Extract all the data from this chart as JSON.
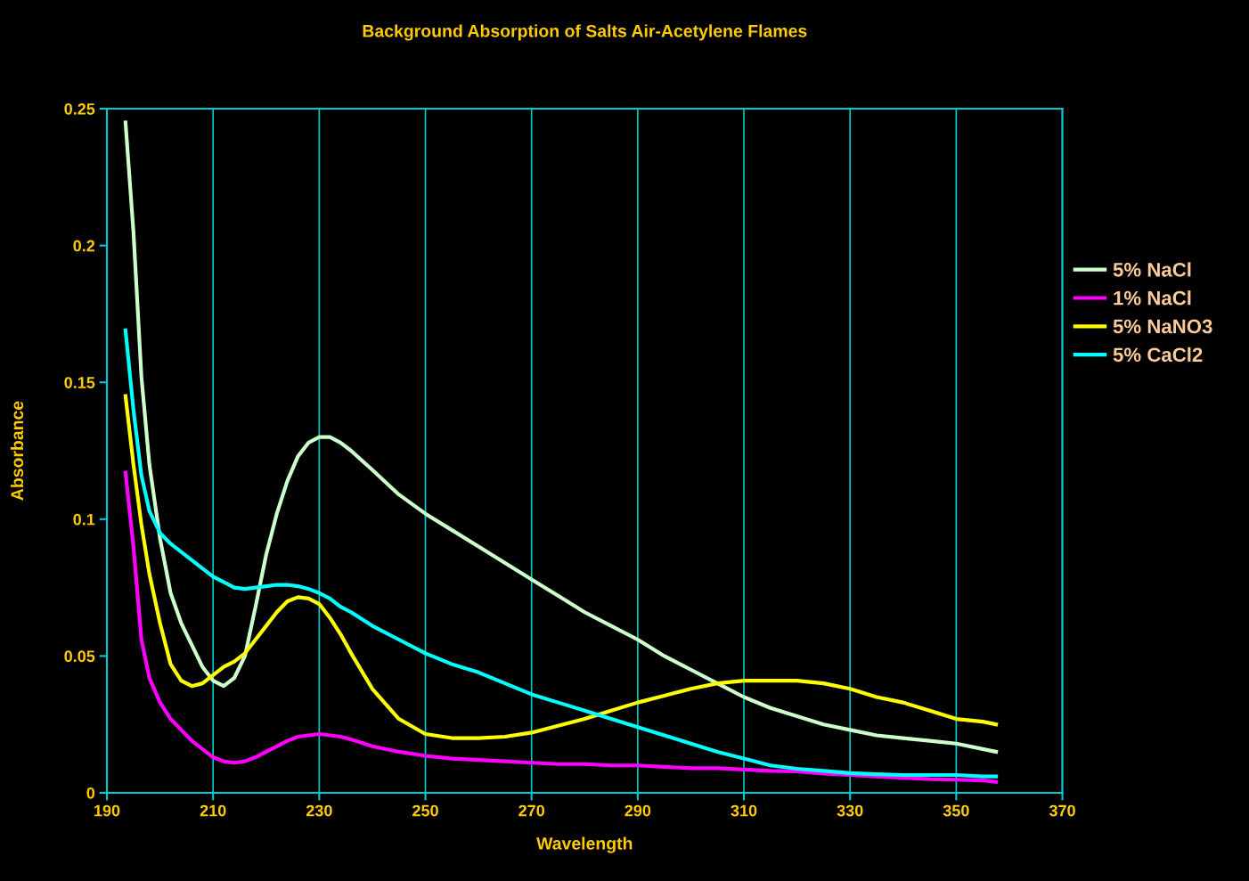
{
  "chart_data": {
    "type": "line",
    "title": "Background Absorption of Salts Air-Acetylene Flames",
    "xlabel": "Wavelength",
    "ylabel": "Absorbance",
    "x": [
      193.5,
      195,
      196.5,
      198,
      200,
      202,
      204,
      206,
      208,
      210,
      212,
      214,
      216,
      218,
      220,
      222,
      224,
      226,
      228,
      230,
      232,
      234,
      236,
      240,
      245,
      250,
      255,
      260,
      265,
      270,
      275,
      280,
      285,
      290,
      295,
      300,
      305,
      310,
      315,
      320,
      325,
      330,
      335,
      340,
      345,
      350,
      355,
      357.5
    ],
    "series": [
      {
        "name": "5% NaCl",
        "color": "#ccffcc",
        "values": [
          0.245,
          0.205,
          0.152,
          0.12,
          0.093,
          0.073,
          0.062,
          0.054,
          0.046,
          0.041,
          0.039,
          0.042,
          0.05,
          0.068,
          0.087,
          0.102,
          0.114,
          0.123,
          0.128,
          0.13,
          0.13,
          0.128,
          0.125,
          0.118,
          0.109,
          0.102,
          0.096,
          0.09,
          0.084,
          0.078,
          0.072,
          0.066,
          0.061,
          0.056,
          0.05,
          0.045,
          0.04,
          0.035,
          0.031,
          0.028,
          0.025,
          0.023,
          0.021,
          0.02,
          0.019,
          0.018,
          0.016,
          0.015
        ]
      },
      {
        "name": "1% NaCl",
        "color": "#ff00ff",
        "values": [
          0.117,
          0.09,
          0.056,
          0.042,
          0.033,
          0.027,
          0.023,
          0.019,
          0.016,
          0.013,
          0.0115,
          0.011,
          0.0115,
          0.013,
          0.015,
          0.017,
          0.019,
          0.0205,
          0.021,
          0.0215,
          0.021,
          0.0205,
          0.0195,
          0.017,
          0.015,
          0.0135,
          0.0125,
          0.012,
          0.0115,
          0.011,
          0.0105,
          0.0105,
          0.01,
          0.01,
          0.0095,
          0.009,
          0.009,
          0.0085,
          0.008,
          0.0078,
          0.007,
          0.0065,
          0.006,
          0.0055,
          0.005,
          0.0048,
          0.0045,
          0.004
        ]
      },
      {
        "name": "5% NaNO3",
        "color": "#ffff00",
        "values": [
          0.145,
          0.12,
          0.098,
          0.08,
          0.062,
          0.047,
          0.041,
          0.039,
          0.04,
          0.043,
          0.046,
          0.048,
          0.051,
          0.056,
          0.061,
          0.066,
          0.07,
          0.0715,
          0.071,
          0.069,
          0.064,
          0.058,
          0.051,
          0.038,
          0.027,
          0.0215,
          0.02,
          0.02,
          0.0205,
          0.022,
          0.0245,
          0.027,
          0.03,
          0.033,
          0.0355,
          0.038,
          0.04,
          0.041,
          0.041,
          0.041,
          0.04,
          0.038,
          0.035,
          0.033,
          0.03,
          0.027,
          0.026,
          0.025
        ]
      },
      {
        "name": "5% CaCl2",
        "color": "#00ffff",
        "values": [
          0.169,
          0.14,
          0.116,
          0.103,
          0.095,
          0.091,
          0.088,
          0.085,
          0.082,
          0.079,
          0.077,
          0.075,
          0.0745,
          0.075,
          0.0755,
          0.076,
          0.076,
          0.0755,
          0.0745,
          0.073,
          0.071,
          0.068,
          0.066,
          0.061,
          0.056,
          0.051,
          0.047,
          0.044,
          0.04,
          0.036,
          0.033,
          0.03,
          0.027,
          0.024,
          0.021,
          0.018,
          0.015,
          0.0125,
          0.01,
          0.0088,
          0.008,
          0.0072,
          0.0068,
          0.0065,
          0.0065,
          0.0065,
          0.006,
          0.006
        ]
      }
    ],
    "xlim": [
      190,
      370
    ],
    "xticks": [
      190,
      210,
      230,
      250,
      270,
      290,
      310,
      330,
      350,
      370
    ],
    "ylim": [
      0,
      0.25
    ],
    "yticks": [
      0,
      0.05,
      0.1,
      0.15,
      0.2,
      0.25
    ],
    "grid": "x",
    "legend": "right",
    "marker": "none",
    "line_style": "solid"
  }
}
